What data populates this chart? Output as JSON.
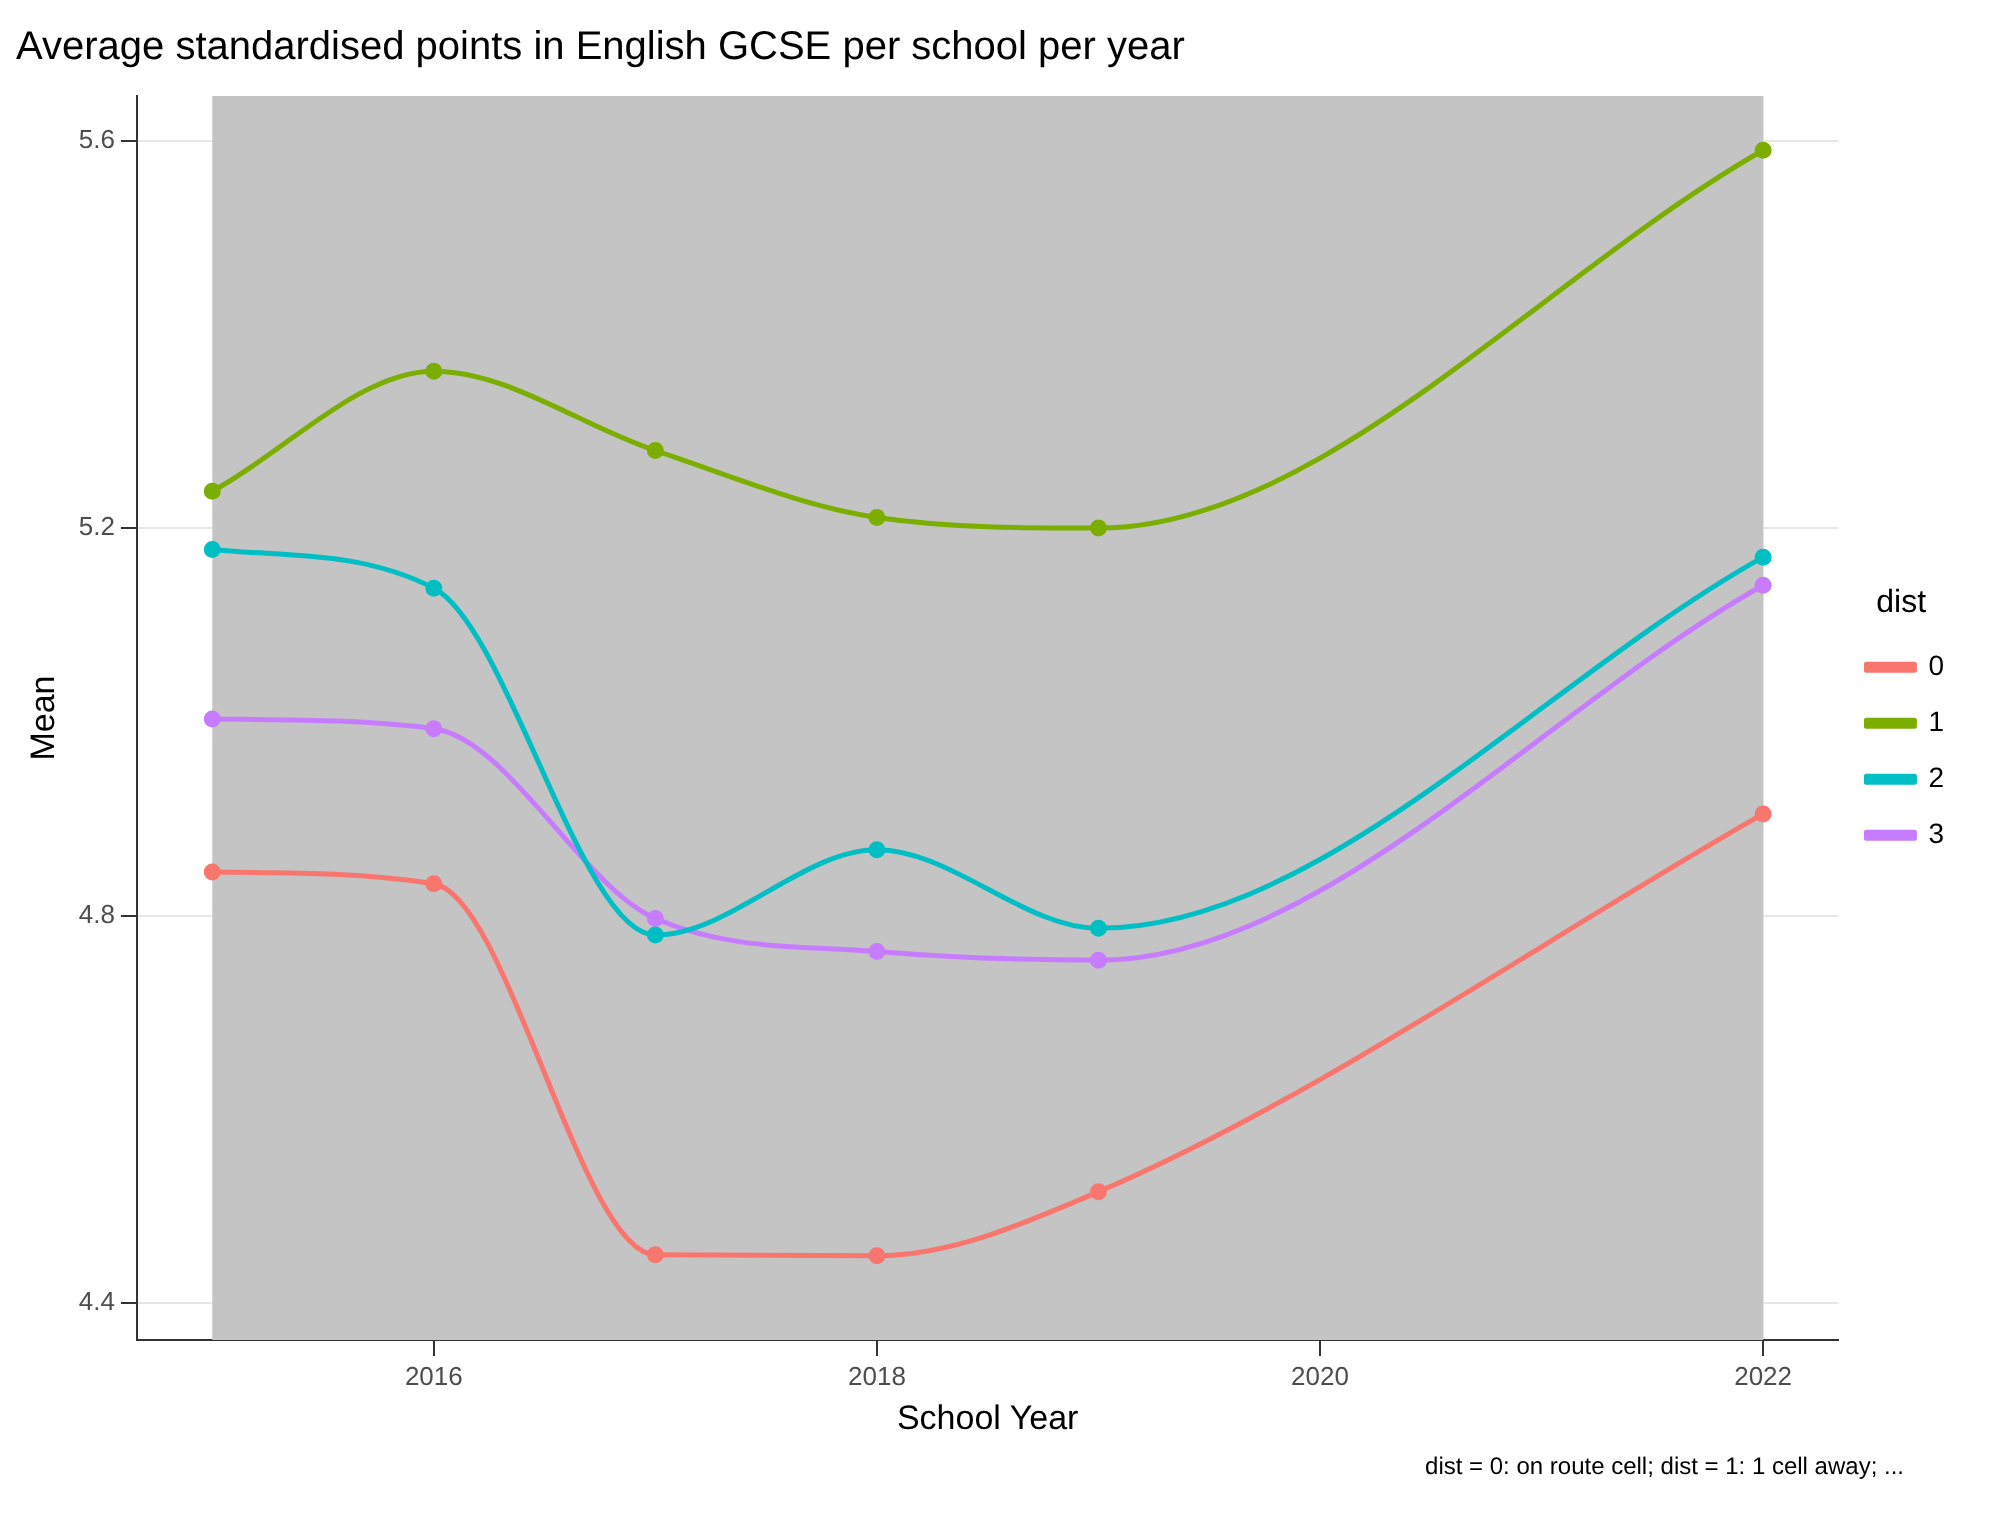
{
  "chart_data": {
    "type": "line",
    "title": "Average standardised points in English GCSE per school per year",
    "xlabel": "School Year",
    "ylabel": "Mean",
    "legend_title": "dist",
    "x": [
      2015,
      2016,
      2017,
      2018,
      2019,
      2022
    ],
    "series": [
      {
        "name": "0",
        "color": "#f8766d",
        "values": [
          4.845,
          4.833,
          4.45,
          4.449,
          4.515,
          4.905
        ]
      },
      {
        "name": "1",
        "color": "#7cae00",
        "values": [
          5.238,
          5.362,
          5.28,
          5.211,
          5.2,
          5.59
        ]
      },
      {
        "name": "2",
        "color": "#00bfc4",
        "values": [
          5.178,
          5.138,
          4.78,
          4.868,
          4.787,
          5.17
        ]
      },
      {
        "name": "3",
        "color": "#c77cff",
        "values": [
          5.003,
          4.993,
          4.797,
          4.763,
          4.754,
          5.141
        ]
      }
    ],
    "xlim": [
      2014.66,
      2022.34
    ],
    "xticks": [
      2016,
      2018,
      2020,
      2022
    ],
    "ylim": [
      4.362,
      5.646
    ],
    "yticks": [
      4.4,
      4.8,
      5.2,
      5.6
    ],
    "bands": [
      {
        "axis": "x",
        "from": 2015,
        "to": 2022,
        "color": "#c4c4c4"
      }
    ],
    "annotations": [
      "dist = 0: on route cell; dist = 1: 1 cell away; ..."
    ],
    "grid": true,
    "legend": "right",
    "marker": "circle",
    "line_style": "solid"
  }
}
